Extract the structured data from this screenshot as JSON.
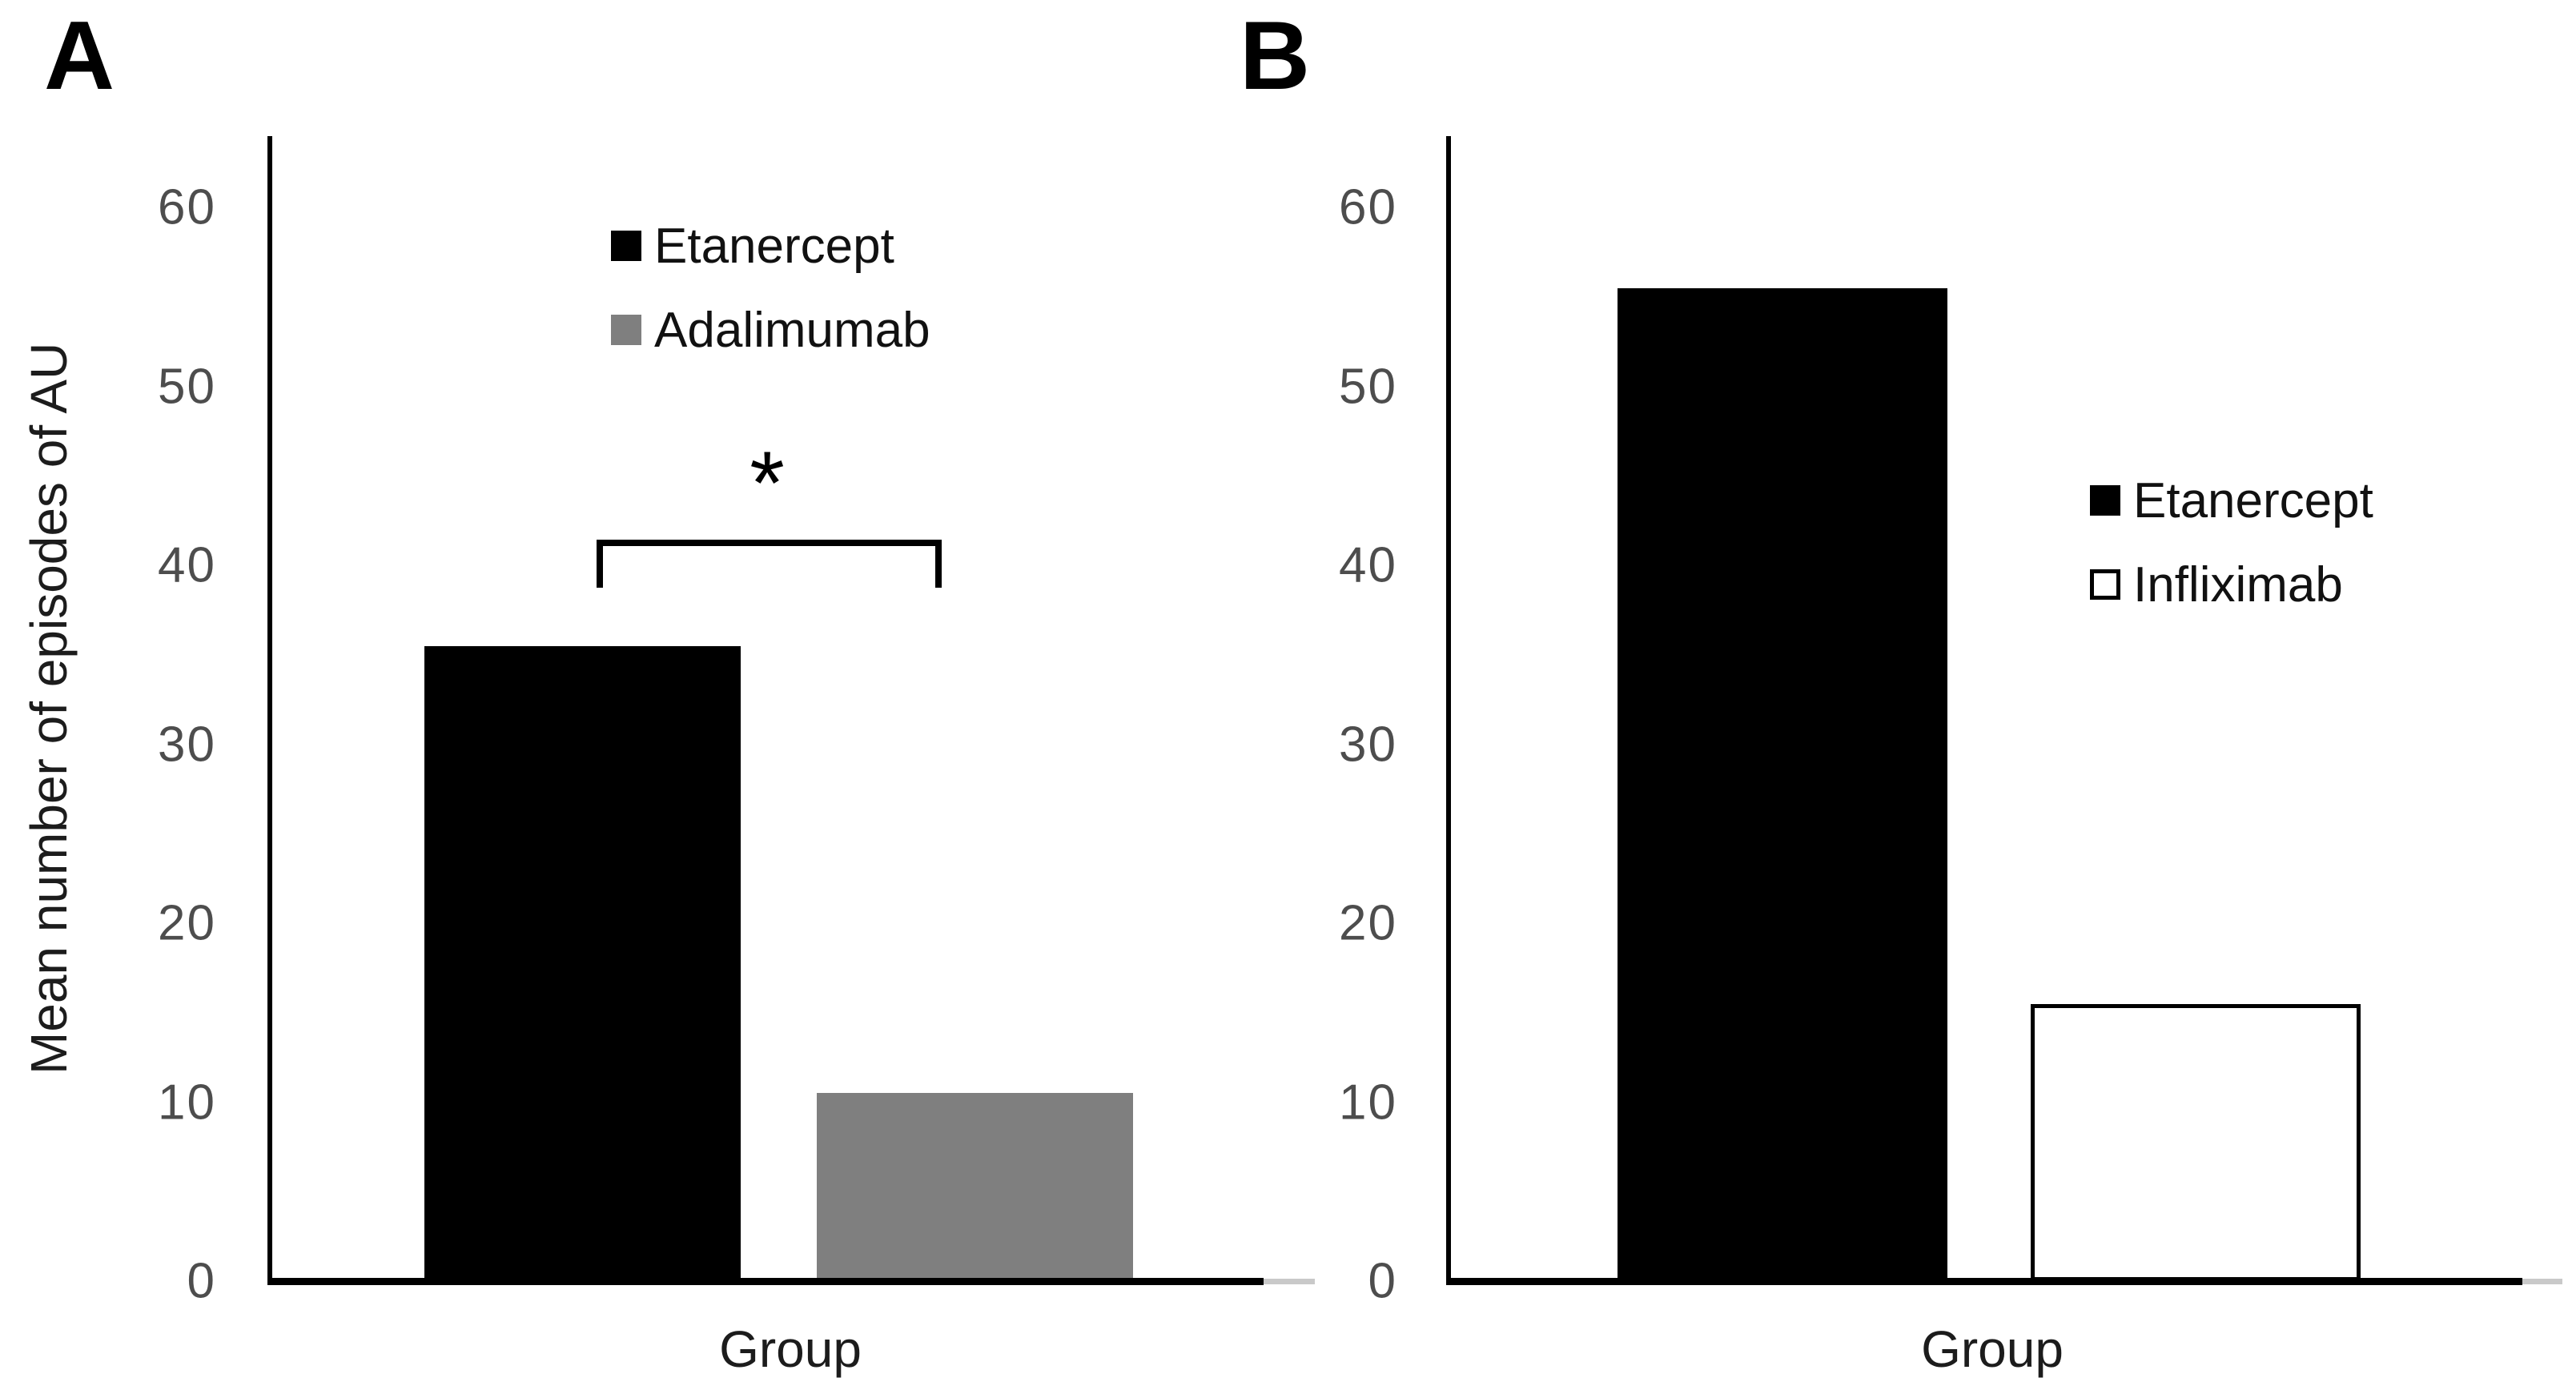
{
  "figure": {
    "background": "#ffffff",
    "panels": [
      {
        "letter": "A"
      },
      {
        "letter": "B"
      }
    ]
  },
  "chart_data": [
    {
      "type": "bar",
      "panel": "A",
      "title": "",
      "categories": [
        "Group"
      ],
      "series": [
        {
          "name": "Etanercept",
          "values": [
            35.5
          ],
          "color": "#000000"
        },
        {
          "name": "Adalimumab",
          "values": [
            10.5
          ],
          "color": "#7f7f7f"
        }
      ],
      "xlabel": "Group",
      "ylabel": "Mean number of episodes of AU",
      "ylim": [
        0,
        64
      ],
      "yticks": [
        0,
        10,
        20,
        30,
        40,
        50,
        60
      ],
      "grid": false,
      "legend_position": "top-center-inside",
      "significance": {
        "symbol": "*",
        "compares": [
          "Etanercept",
          "Adalimumab"
        ]
      }
    },
    {
      "type": "bar",
      "panel": "B",
      "title": "",
      "categories": [
        "Group"
      ],
      "series": [
        {
          "name": "Etanercept",
          "values": [
            55.5
          ],
          "color": "#000000"
        },
        {
          "name": "Infliximab",
          "values": [
            15.5
          ],
          "color": "#ffffff",
          "border_color": "#000000"
        }
      ],
      "xlabel": "Group",
      "ylabel": "",
      "ylim": [
        0,
        64
      ],
      "yticks": [
        0,
        10,
        20,
        30,
        40,
        50,
        60
      ],
      "grid": false,
      "legend_position": "middle-right-inside"
    }
  ]
}
